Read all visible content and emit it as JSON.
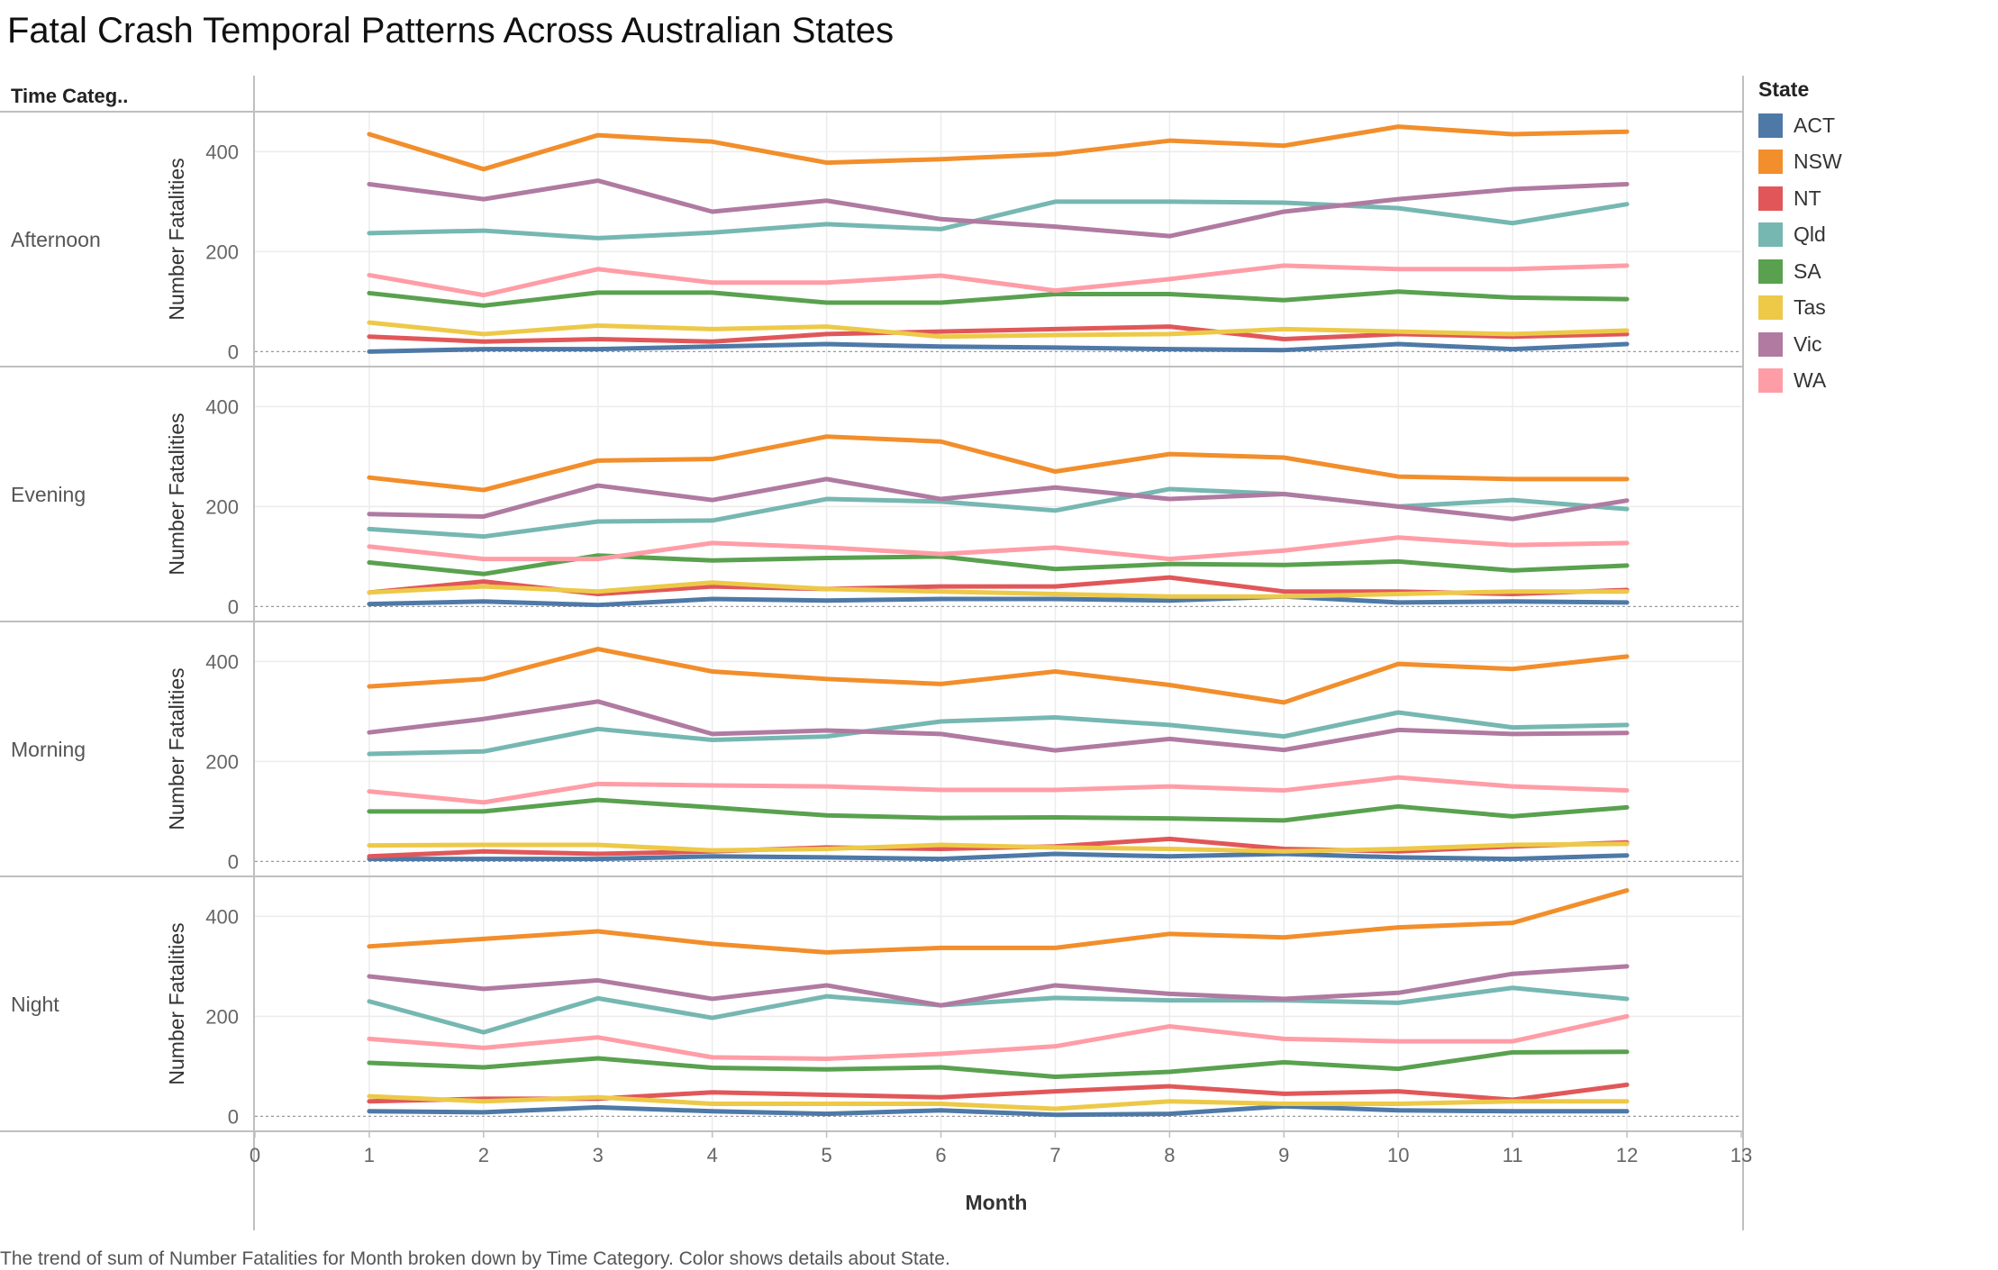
{
  "title": "Fatal Crash Temporal Patterns Across Australian States",
  "caption": "The trend of sum of Number Fatalities for Month broken down by Time Category.  Color shows details about State.",
  "chart_data": {
    "type": "line",
    "row_header": "Time Categ..",
    "xlabel": "Month",
    "ylabel": "Number Fatalities",
    "x_ticks": [
      0,
      1,
      2,
      3,
      4,
      5,
      6,
      7,
      8,
      9,
      10,
      11,
      12,
      13
    ],
    "xlim": [
      0,
      13
    ],
    "y_ticks": [
      0,
      200,
      400
    ],
    "ylim": [
      -30,
      480
    ],
    "grid": true,
    "legend": {
      "title": "State",
      "position": "right"
    },
    "x": [
      1,
      2,
      3,
      4,
      5,
      6,
      7,
      8,
      9,
      10,
      11,
      12
    ],
    "states": [
      {
        "name": "ACT",
        "color": "#4e79a7"
      },
      {
        "name": "NSW",
        "color": "#f28e2b"
      },
      {
        "name": "NT",
        "color": "#e15759"
      },
      {
        "name": "Qld",
        "color": "#76b7b2"
      },
      {
        "name": "SA",
        "color": "#59a14f"
      },
      {
        "name": "Tas",
        "color": "#edc948"
      },
      {
        "name": "Vic",
        "color": "#b07aa1"
      },
      {
        "name": "WA",
        "color": "#ff9da7"
      }
    ],
    "panels": [
      {
        "label": "Afternoon",
        "series": [
          {
            "name": "ACT",
            "values": [
              0,
              5,
              5,
              10,
              15,
              10,
              8,
              5,
              3,
              15,
              5,
              15
            ]
          },
          {
            "name": "NSW",
            "values": [
              435,
              365,
              433,
              420,
              378,
              385,
              395,
              422,
              412,
              450,
              435,
              440
            ]
          },
          {
            "name": "NT",
            "values": [
              30,
              20,
              25,
              20,
              35,
              40,
              45,
              50,
              25,
              35,
              30,
              35
            ]
          },
          {
            "name": "Qld",
            "values": [
              237,
              242,
              227,
              238,
              255,
              245,
              300,
              300,
              298,
              287,
              257,
              295
            ]
          },
          {
            "name": "SA",
            "values": [
              117,
              92,
              118,
              118,
              98,
              98,
              115,
              115,
              103,
              120,
              108,
              105
            ]
          },
          {
            "name": "Tas",
            "values": [
              58,
              35,
              52,
              45,
              50,
              30,
              33,
              35,
              45,
              40,
              35,
              42
            ]
          },
          {
            "name": "Vic",
            "values": [
              335,
              305,
              342,
              280,
              302,
              265,
              250,
              231,
              280,
              305,
              325,
              335
            ]
          },
          {
            "name": "WA",
            "values": [
              153,
              113,
              165,
              138,
              138,
              152,
              122,
              145,
              172,
              165,
              165,
              172
            ]
          }
        ]
      },
      {
        "label": "Evening",
        "series": [
          {
            "name": "ACT",
            "values": [
              5,
              10,
              3,
              15,
              12,
              15,
              15,
              12,
              20,
              8,
              10,
              8
            ]
          },
          {
            "name": "NSW",
            "values": [
              258,
              233,
              292,
              295,
              340,
              330,
              270,
              305,
              298,
              260,
              255,
              255
            ]
          },
          {
            "name": "NT",
            "values": [
              28,
              50,
              25,
              40,
              35,
              40,
              40,
              58,
              30,
              30,
              25,
              33
            ]
          },
          {
            "name": "Qld",
            "values": [
              155,
              140,
              170,
              172,
              215,
              210,
              192,
              235,
              225,
              200,
              213,
              195
            ]
          },
          {
            "name": "SA",
            "values": [
              88,
              65,
              102,
              92,
              97,
              100,
              75,
              85,
              83,
              90,
              72,
              82
            ]
          },
          {
            "name": "Tas",
            "values": [
              28,
              40,
              30,
              48,
              35,
              30,
              25,
              20,
              20,
              25,
              30,
              30
            ]
          },
          {
            "name": "Vic",
            "values": [
              185,
              180,
              242,
              213,
              255,
              215,
              238,
              215,
              225,
              200,
              175,
              212
            ]
          },
          {
            "name": "WA",
            "values": [
              120,
              95,
              95,
              127,
              118,
              105,
              118,
              95,
              112,
              138,
              123,
              127
            ]
          }
        ]
      },
      {
        "label": "Morning",
        "series": [
          {
            "name": "ACT",
            "values": [
              5,
              5,
              5,
              10,
              8,
              5,
              15,
              10,
              15,
              8,
              5,
              12
            ]
          },
          {
            "name": "NSW",
            "values": [
              350,
              365,
              425,
              380,
              365,
              355,
              380,
              353,
              318,
              395,
              385,
              410
            ]
          },
          {
            "name": "NT",
            "values": [
              10,
              20,
              15,
              20,
              28,
              25,
              30,
              45,
              25,
              20,
              30,
              38
            ]
          },
          {
            "name": "Qld",
            "values": [
              215,
              220,
              265,
              243,
              250,
              280,
              288,
              273,
              250,
              298,
              268,
              273
            ]
          },
          {
            "name": "SA",
            "values": [
              100,
              100,
              123,
              108,
              92,
              87,
              88,
              86,
              82,
              110,
              90,
              108
            ]
          },
          {
            "name": "Tas",
            "values": [
              32,
              33,
              33,
              22,
              25,
              33,
              28,
              25,
              20,
              25,
              33,
              35
            ]
          },
          {
            "name": "Vic",
            "values": [
              258,
              285,
              320,
              255,
              262,
              255,
              222,
              245,
              223,
              263,
              255,
              257
            ]
          },
          {
            "name": "WA",
            "values": [
              140,
              118,
              155,
              152,
              150,
              143,
              143,
              150,
              142,
              168,
              150,
              142
            ]
          }
        ]
      },
      {
        "label": "Night",
        "series": [
          {
            "name": "ACT",
            "values": [
              10,
              8,
              18,
              10,
              5,
              12,
              3,
              5,
              20,
              12,
              10,
              10
            ]
          },
          {
            "name": "NSW",
            "values": [
              340,
              355,
              370,
              345,
              328,
              337,
              337,
              365,
              358,
              378,
              387,
              452
            ]
          },
          {
            "name": "NT",
            "values": [
              30,
              35,
              35,
              48,
              43,
              38,
              50,
              60,
              45,
              50,
              33,
              63
            ]
          },
          {
            "name": "Qld",
            "values": [
              230,
              168,
              236,
              197,
              240,
              222,
              237,
              232,
              232,
              227,
              257,
              235
            ]
          },
          {
            "name": "SA",
            "values": [
              107,
              98,
              116,
              97,
              94,
              98,
              79,
              89,
              108,
              95,
              128,
              129
            ]
          },
          {
            "name": "Tas",
            "values": [
              40,
              30,
              38,
              25,
              25,
              25,
              15,
              30,
              25,
              25,
              30,
              30
            ]
          },
          {
            "name": "Vic",
            "values": [
              280,
              255,
              272,
              235,
              262,
              222,
              262,
              245,
              235,
              247,
              285,
              300
            ]
          },
          {
            "name": "WA",
            "values": [
              155,
              137,
              158,
              118,
              115,
              125,
              140,
              180,
              155,
              150,
              150,
              200
            ]
          }
        ]
      }
    ]
  }
}
